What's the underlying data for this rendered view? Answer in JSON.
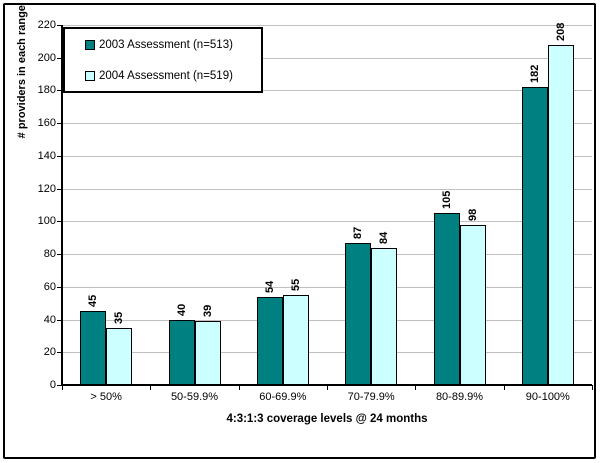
{
  "chart_data": {
    "type": "bar",
    "title": "",
    "categories": [
      "> 50%",
      "50-59.9%",
      "60-69.9%",
      "70-79.9%",
      "80-89.9%",
      "90-100%"
    ],
    "series": [
      {
        "name": "2003 Assessment (n=513)",
        "color": "#008080",
        "values": [
          45,
          40,
          54,
          87,
          105,
          182
        ]
      },
      {
        "name": "2004 Assessment (n=519)",
        "color": "#CCFFFF",
        "values": [
          35,
          39,
          55,
          84,
          98,
          208
        ]
      }
    ],
    "xlabel": "4:3:1:3 coverage levels @ 24 months",
    "ylabel": "# providers in each range",
    "ylim": [
      0,
      220
    ],
    "ytick_step": 20,
    "grid": true,
    "legend_position": "top-left",
    "colors": {
      "gridline": "#C0C0C0",
      "axis": "#000000",
      "bar_border": "#000000",
      "background": "#FFFFFF"
    }
  }
}
